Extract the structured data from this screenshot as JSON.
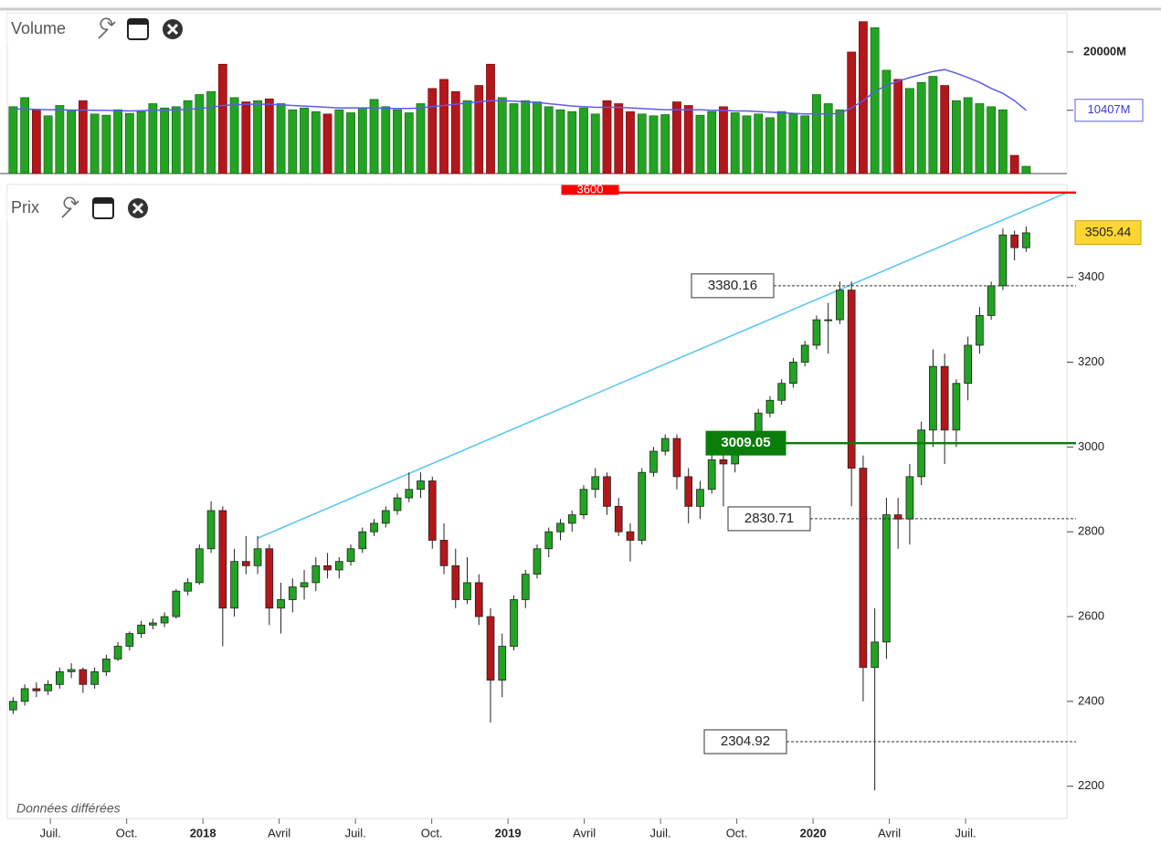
{
  "chart_data": {
    "type": "candlestick",
    "volume_panel": {
      "title": "Volume",
      "ylim": [
        0,
        26000
      ],
      "yticks": [
        {
          "value": 20000,
          "label": "20000M"
        }
      ],
      "current": {
        "value": 10407,
        "label": "10407M"
      },
      "ma_color": "#5b5bf0",
      "values": [
        11000,
        12500,
        10500,
        9500,
        11200,
        10300,
        12000,
        9800,
        9600,
        10500,
        9900,
        10200,
        11500,
        10800,
        11000,
        12000,
        13000,
        13500,
        18000,
        12500,
        11800,
        12000,
        12300,
        11500,
        10500,
        10800,
        10200,
        9800,
        10500,
        10000,
        10800,
        12200,
        11000,
        10500,
        10000,
        11500,
        14000,
        15500,
        13500,
        12000,
        14500,
        18000,
        12500,
        11500,
        12000,
        11800,
        11000,
        10500,
        10200,
        10800,
        9800,
        12000,
        11500,
        10200,
        9800,
        9500,
        9700,
        11800,
        11200,
        9600,
        10200,
        11000,
        10000,
        9500,
        9800,
        9200,
        10200,
        9800,
        9500,
        13000,
        11500,
        10500,
        20000,
        25000,
        24000,
        17000,
        15500,
        14000,
        15000,
        16000,
        14500,
        12000,
        12500,
        11500,
        11000,
        10500,
        3000,
        1200
      ],
      "ma": [
        10600,
        10600,
        10550,
        10500,
        10500,
        10450,
        10450,
        10400,
        10400,
        10350,
        10300,
        10350,
        10400,
        10450,
        10500,
        10550,
        10700,
        10900,
        11200,
        11300,
        11400,
        11400,
        11400,
        11300,
        11200,
        11100,
        11000,
        10900,
        10800,
        10800,
        10800,
        10800,
        10700,
        10700,
        10700,
        10800,
        11000,
        11200,
        11400,
        11600,
        11800,
        12000,
        12000,
        11900,
        11800,
        11700,
        11500,
        11300,
        11100,
        11000,
        10900,
        10900,
        10900,
        10800,
        10700,
        10600,
        10500,
        10500,
        10500,
        10500,
        10400,
        10400,
        10300,
        10300,
        10200,
        10100,
        10000,
        9900,
        9800,
        9800,
        9800,
        9900,
        10800,
        12000,
        13500,
        14500,
        15200,
        15800,
        16300,
        16800,
        17100,
        16500,
        15800,
        15000,
        14000,
        13200,
        12000,
        10407
      ]
    },
    "price_panel": {
      "title": "Prix",
      "ylim": [
        2124,
        3619
      ],
      "yticks": [
        2200,
        2400,
        2600,
        2800,
        3000,
        3200,
        3400
      ],
      "last": 3505.44,
      "up_color": "#22a322",
      "down_color": "#b3171b",
      "open": [
        2380,
        2400,
        2430,
        2425,
        2440,
        2470,
        2475,
        2440,
        2470,
        2500,
        2530,
        2560,
        2580,
        2585,
        2600,
        2660,
        2680,
        2760,
        2850,
        2620,
        2730,
        2720,
        2760,
        2620,
        2640,
        2670,
        2680,
        2720,
        2710,
        2730,
        2760,
        2800,
        2820,
        2850,
        2880,
        2900,
        2920,
        2780,
        2720,
        2640,
        2680,
        2600,
        2450,
        2530,
        2640,
        2700,
        2760,
        2800,
        2820,
        2840,
        2900,
        2930,
        2860,
        2800,
        2780,
        2940,
        2990,
        3020,
        2930,
        2860,
        2900,
        2970,
        2960,
        2990,
        3020,
        3080,
        3110,
        3150,
        3200,
        3240,
        3300,
        3300,
        3370,
        2950,
        2480,
        2540,
        2840,
        2830,
        2930,
        3040,
        3190,
        3040,
        3150,
        3240,
        3310,
        3380,
        3500,
        3470
      ],
      "high": [
        2410,
        2440,
        2445,
        2450,
        2480,
        2490,
        2480,
        2480,
        2510,
        2540,
        2565,
        2590,
        2595,
        2610,
        2665,
        2690,
        2770,
        2872,
        2860,
        2760,
        2790,
        2790,
        2770,
        2680,
        2690,
        2710,
        2740,
        2750,
        2740,
        2770,
        2810,
        2830,
        2860,
        2890,
        2940,
        2940,
        2930,
        2820,
        2760,
        2740,
        2700,
        2620,
        2560,
        2650,
        2710,
        2770,
        2810,
        2830,
        2850,
        2910,
        2950,
        2940,
        2880,
        2820,
        2950,
        3000,
        3030,
        3030,
        2950,
        2920,
        2990,
        3000,
        3010,
        3030,
        3090,
        3120,
        3160,
        3210,
        3250,
        3310,
        3340,
        3390,
        3390,
        2980,
        2620,
        2880,
        2880,
        2960,
        3060,
        3230,
        3220,
        3160,
        3260,
        3330,
        3390,
        3515,
        3510,
        3520
      ],
      "low": [
        2370,
        2390,
        2410,
        2415,
        2430,
        2455,
        2420,
        2430,
        2460,
        2495,
        2520,
        2550,
        2570,
        2575,
        2595,
        2650,
        2675,
        2750,
        2530,
        2600,
        2700,
        2700,
        2580,
        2560,
        2610,
        2640,
        2660,
        2690,
        2690,
        2720,
        2750,
        2790,
        2810,
        2840,
        2870,
        2880,
        2760,
        2700,
        2620,
        2630,
        2580,
        2350,
        2410,
        2520,
        2620,
        2690,
        2740,
        2780,
        2800,
        2830,
        2880,
        2840,
        2790,
        2730,
        2770,
        2930,
        2980,
        2900,
        2820,
        2830,
        2890,
        2860,
        2940,
        2980,
        3010,
        3070,
        3100,
        3140,
        3190,
        3230,
        3220,
        3290,
        2860,
        2400,
        2190,
        2500,
        2760,
        2770,
        2910,
        3000,
        2960,
        3000,
        3110,
        3220,
        3300,
        3370,
        3440,
        3460
      ],
      "close": [
        2400,
        2430,
        2425,
        2440,
        2470,
        2475,
        2440,
        2470,
        2500,
        2530,
        2560,
        2580,
        2585,
        2600,
        2660,
        2680,
        2760,
        2850,
        2620,
        2730,
        2720,
        2760,
        2620,
        2640,
        2670,
        2680,
        2720,
        2710,
        2730,
        2760,
        2800,
        2820,
        2850,
        2880,
        2900,
        2920,
        2780,
        2720,
        2640,
        2680,
        2600,
        2450,
        2530,
        2640,
        2700,
        2760,
        2800,
        2820,
        2840,
        2900,
        2930,
        2860,
        2800,
        2780,
        2940,
        2990,
        3020,
        2930,
        2860,
        2900,
        2970,
        2960,
        2990,
        3020,
        3080,
        3110,
        3150,
        3200,
        3240,
        3300,
        3300,
        3370,
        2950,
        2480,
        2540,
        2840,
        2830,
        2930,
        3040,
        3190,
        3040,
        3150,
        3240,
        3310,
        3380,
        3500,
        3470,
        3505
      ],
      "levels": [
        {
          "value": 3600,
          "color": "#ff0000",
          "style": "solid"
        },
        {
          "value": 3009.05,
          "color": "#0a7d0a",
          "style": "solid"
        },
        {
          "value": 3380.16,
          "color": "#333333",
          "style": "dotted"
        },
        {
          "value": 2830.71,
          "color": "#333333",
          "style": "dotted"
        },
        {
          "value": 2304.92,
          "color": "#333333",
          "style": "dotted"
        }
      ],
      "trendline": {
        "x": [
          21.5,
          91
        ],
        "y": [
          2785,
          3600
        ],
        "color": "#5cc8ef"
      }
    },
    "xlim": [
      0,
      91
    ],
    "xticks": [
      {
        "value": 3.7,
        "label": "Juil."
      },
      {
        "value": 10.25,
        "label": "Oct."
      },
      {
        "value": 16.8,
        "label": "2018"
      },
      {
        "value": 23.35,
        "label": "Avril"
      },
      {
        "value": 29.9,
        "label": "Juil."
      },
      {
        "value": 36.45,
        "label": "Oct."
      },
      {
        "value": 43.0,
        "label": "2019"
      },
      {
        "value": 49.55,
        "label": "Avril"
      },
      {
        "value": 56.1,
        "label": "Juil."
      },
      {
        "value": 62.65,
        "label": "Oct."
      },
      {
        "value": 69.2,
        "label": "2020"
      },
      {
        "value": 75.75,
        "label": "Avril"
      },
      {
        "value": 82.3,
        "label": "Juil."
      }
    ],
    "footer": "Données différées"
  }
}
